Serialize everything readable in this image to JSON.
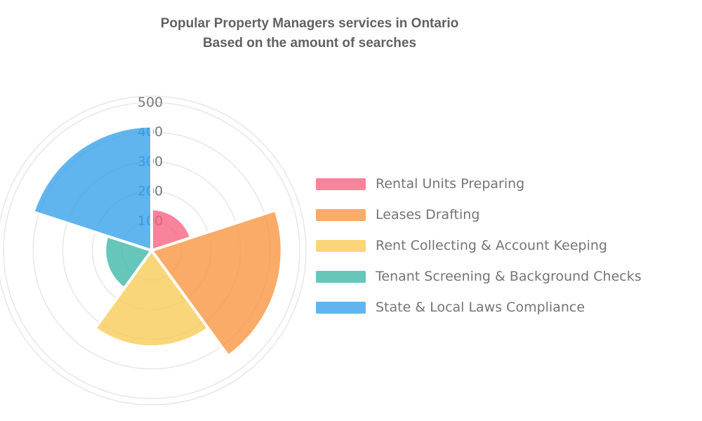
{
  "chart_data": {
    "type": "pie",
    "variant": "polar-area-rose",
    "title": "Popular Property Managers services in Ontario",
    "subtitle": "Based on the amount of searches",
    "categories": [
      "Rental Units Preparing",
      "Leases Drafting",
      "Rent Collecting & Account Keeping",
      "Tenant Screening & Background Checks",
      "State & Local Laws Compliance"
    ],
    "values": [
      140,
      440,
      325,
      158,
      420
    ],
    "colors": [
      "#F6607E",
      "#F8943C",
      "#F9CB55",
      "#3CB6A6",
      "#35A0EA"
    ],
    "fill_opacity": 0.78,
    "r_axis": {
      "ticks": [
        100,
        200,
        300,
        400,
        500
      ],
      "max": 520,
      "label_color": "#7A7A7A"
    },
    "start_angle_deg": 90,
    "direction": "clockwise",
    "equal_angle_deg": 72,
    "grid": true,
    "grid_color": "#E7E7E7",
    "legend_position": "right",
    "legend_text_color": "#757575",
    "title_color": "#616161"
  }
}
